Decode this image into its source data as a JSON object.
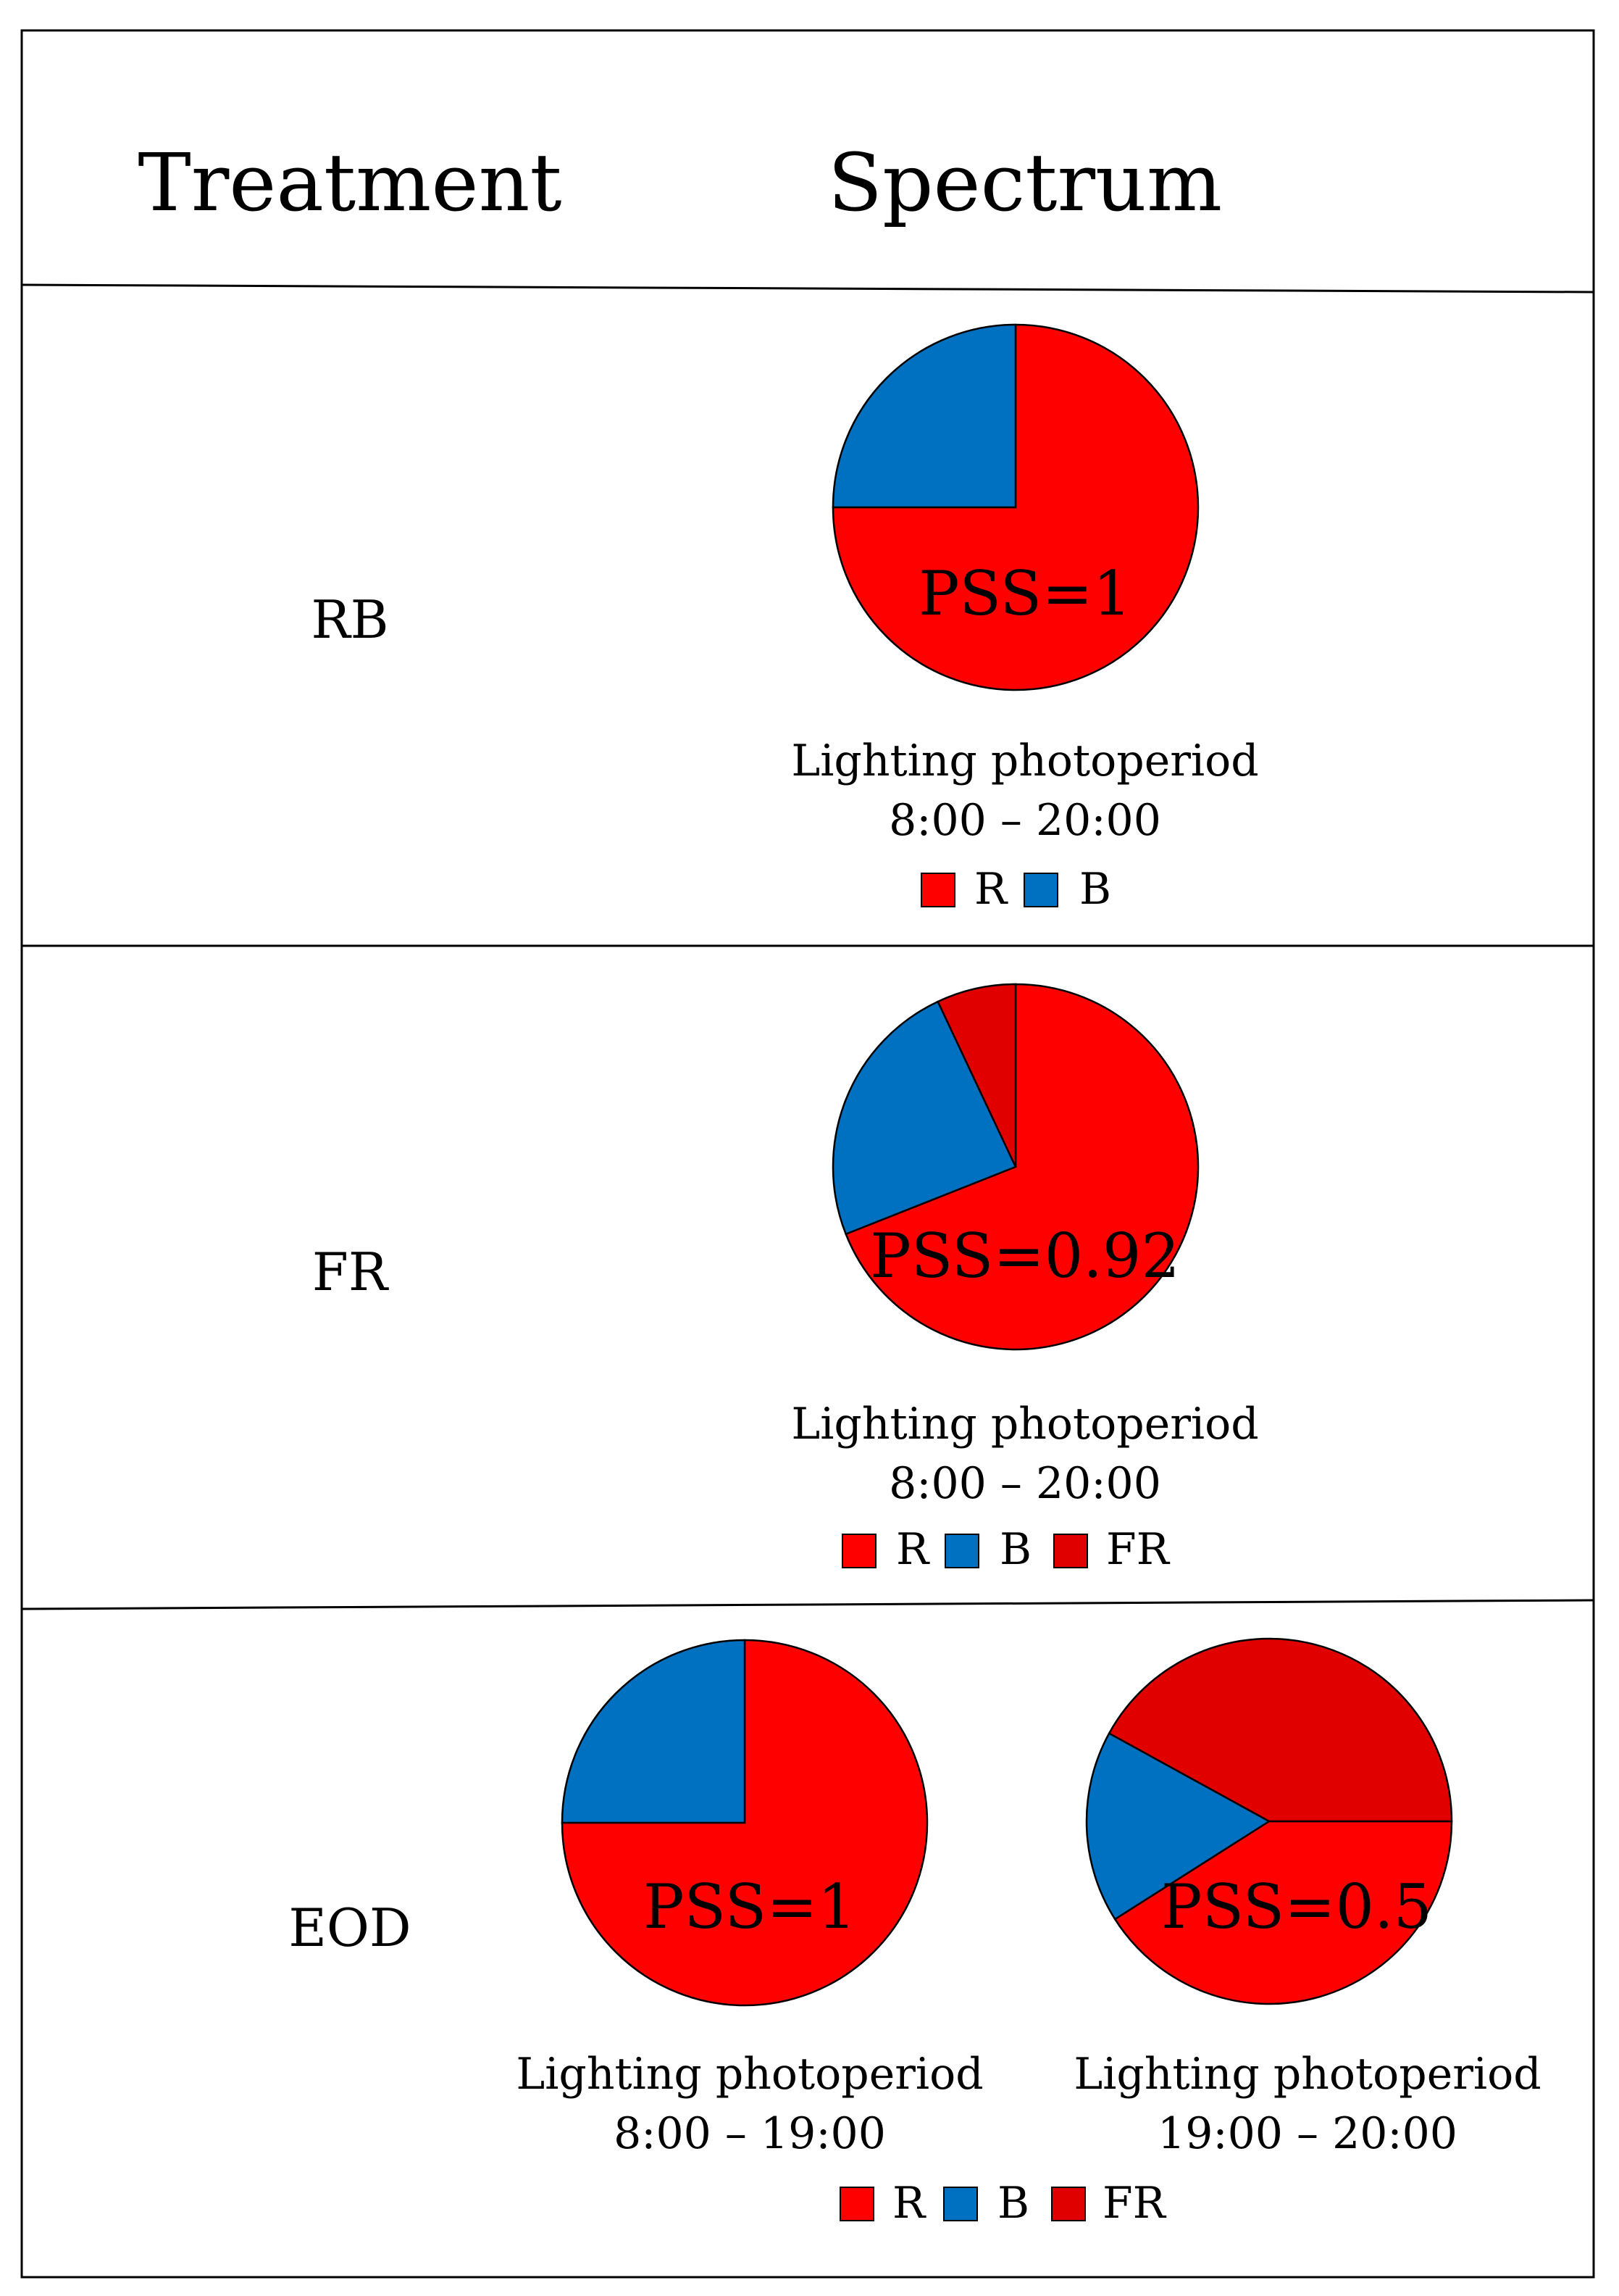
{
  "header": {
    "treatment": "Treatment",
    "spectrum": "Spectrum"
  },
  "colors": {
    "R": "#ff0000",
    "B": "#0070c0",
    "FR": "#e00000"
  },
  "rows": [
    {
      "treatment": "RB",
      "charts": [
        {
          "pss": "PSS=1",
          "slices": [
            {
              "key": "R",
              "pct": 75
            },
            {
              "key": "B",
              "pct": 25
            }
          ],
          "caption": [
            "Lighting photoperiod",
            "8:00 – 20:00"
          ]
        }
      ],
      "legend": [
        "R",
        "B"
      ]
    },
    {
      "treatment": "FR",
      "charts": [
        {
          "pss": "PSS=0.92",
          "slices": [
            {
              "key": "R",
              "pct": 69
            },
            {
              "key": "B",
              "pct": 24
            },
            {
              "key": "FR",
              "pct": 7
            }
          ],
          "caption": [
            "Lighting photoperiod",
            "8:00 – 20:00"
          ]
        }
      ],
      "legend": [
        "R",
        "B",
        "FR"
      ]
    },
    {
      "treatment": "EOD",
      "charts": [
        {
          "pss": "PSS=1",
          "slices": [
            {
              "key": "R",
              "pct": 75
            },
            {
              "key": "B",
              "pct": 25
            }
          ],
          "caption": [
            "Lighting photoperiod",
            "8:00 – 19:00"
          ]
        },
        {
          "pss": "PSS=0.5",
          "slices": [
            {
              "key": "R",
              "pct": 41
            },
            {
              "key": "B",
              "pct": 17
            },
            {
              "key": "FR",
              "pct": 42
            }
          ],
          "caption": [
            "Lighting photoperiod",
            "19:00 – 20:00"
          ]
        }
      ],
      "legend": [
        "R",
        "B",
        "FR"
      ]
    }
  ]
}
